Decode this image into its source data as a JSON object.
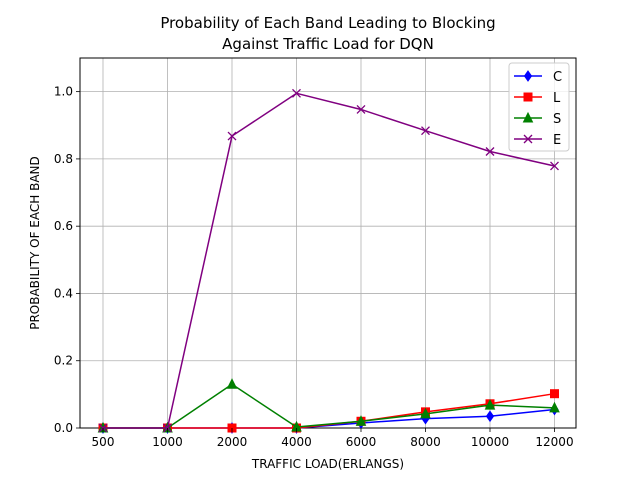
{
  "chart_data": {
    "type": "line",
    "title_line1": "Probability of Each Band Leading to Blocking",
    "title_line2": "Against Traffic Load for DQN",
    "xlabel": "TRAFFIC LOAD(ERLANGS)",
    "ylabel": "PROBABILITY OF EACH BAND",
    "categories": [
      "500",
      "1000",
      "2000",
      "4000",
      "6000",
      "8000",
      "10000",
      "12000"
    ],
    "ylim": [
      0,
      1.1
    ],
    "yticks": [
      "0.0",
      "0.2",
      "0.4",
      "0.6",
      "0.8",
      "1.0"
    ],
    "grid": true,
    "legend_position": "top-right",
    "series": [
      {
        "name": "C",
        "color": "#0000ff",
        "marker": "diamond",
        "values": [
          0.0,
          0.0,
          0.0,
          0.0,
          0.015,
          0.028,
          0.035,
          0.055
        ]
      },
      {
        "name": "L",
        "color": "#ff0000",
        "marker": "square",
        "values": [
          0.0,
          0.0,
          0.0,
          0.0,
          0.02,
          0.048,
          0.072,
          0.102
        ]
      },
      {
        "name": "S",
        "color": "#008000",
        "marker": "triangle",
        "values": [
          0.0,
          0.0,
          0.13,
          0.003,
          0.02,
          0.042,
          0.068,
          0.06
        ]
      },
      {
        "name": "E",
        "color": "#800080",
        "marker": "x",
        "values": [
          0.0,
          0.0,
          0.868,
          0.995,
          0.947,
          0.884,
          0.822,
          0.779
        ]
      }
    ]
  }
}
